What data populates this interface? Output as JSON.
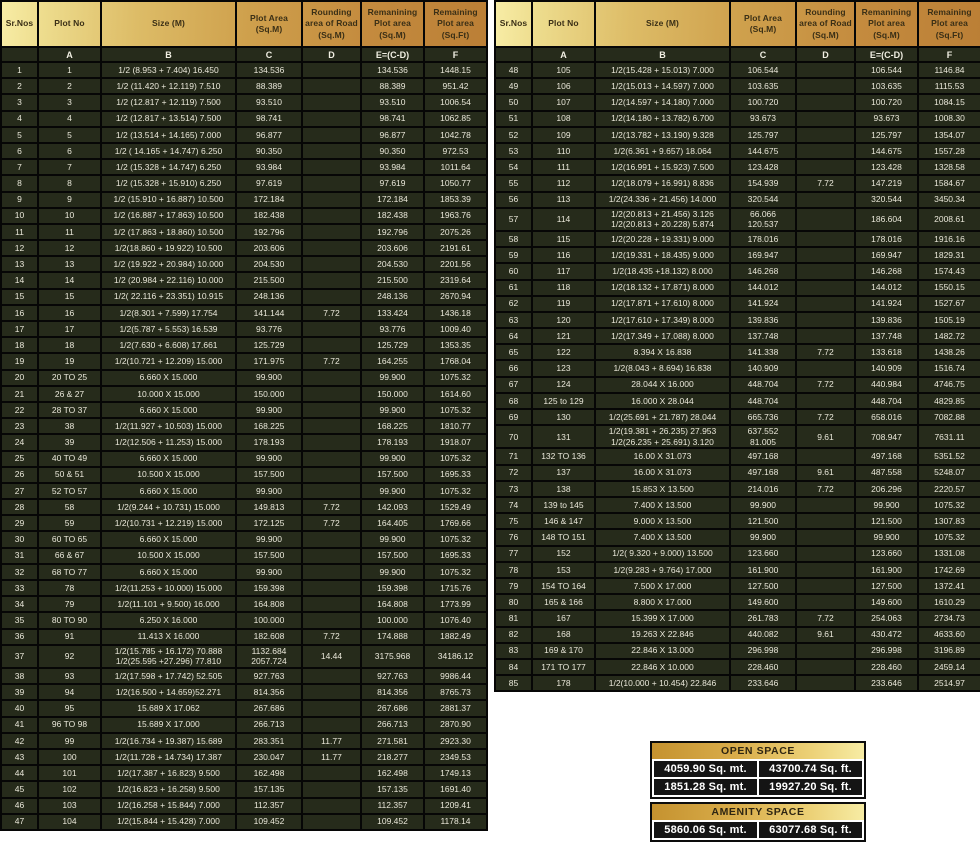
{
  "headers": [
    "Sr.Nos",
    "Plot No",
    "Size (M)",
    "Plot Area (Sq.M)",
    "Rounding area of Road (Sq.M)",
    "Remanining Plot area (Sq.M)",
    "Remaining Plot area (Sq.Ft)"
  ],
  "subheaders": [
    "",
    "A",
    "B",
    "C",
    "D",
    "E=(C-D)",
    "F"
  ],
  "left_table": {
    "rows": [
      [
        "1",
        "1",
        "1/2 (8.953 + 7.404) 16.450",
        "134.536",
        "",
        "134.536",
        "1448.15"
      ],
      [
        "2",
        "2",
        "1/2 (11.420 + 12.119) 7.510",
        "88.389",
        "",
        "88.389",
        "951.42"
      ],
      [
        "3",
        "3",
        "1/2 (12.817 + 12.119) 7.500",
        "93.510",
        "",
        "93.510",
        "1006.54"
      ],
      [
        "4",
        "4",
        "1/2 (12.817 + 13.514) 7.500",
        "98.741",
        "",
        "98.741",
        "1062.85"
      ],
      [
        "5",
        "5",
        "1/2 (13.514 + 14.165) 7.000",
        "96.877",
        "",
        "96.877",
        "1042.78"
      ],
      [
        "6",
        "6",
        "1/2 ( 14.165 + 14.747) 6.250",
        "90.350",
        "",
        "90.350",
        "972.53"
      ],
      [
        "7",
        "7",
        "1/2 (15.328 + 14.747) 6.250",
        "93.984",
        "",
        "93.984",
        "1011.64"
      ],
      [
        "8",
        "8",
        "1/2 (15.328 + 15.910) 6.250",
        "97.619",
        "",
        "97.619",
        "1050.77"
      ],
      [
        "9",
        "9",
        "1/2 (15.910 + 16.887) 10.500",
        "172.184",
        "",
        "172.184",
        "1853.39"
      ],
      [
        "10",
        "10",
        "1/2 (16.887 + 17.863) 10.500",
        "182.438",
        "",
        "182.438",
        "1963.76"
      ],
      [
        "11",
        "11",
        "1/2 (17.863 + 18.860) 10.500",
        "192.796",
        "",
        "192.796",
        "2075.26"
      ],
      [
        "12",
        "12",
        "1/2(18.860 + 19.922) 10.500",
        "203.606",
        "",
        "203.606",
        "2191.61"
      ],
      [
        "13",
        "13",
        "1/2 (19.922 + 20.984) 10.000",
        "204.530",
        "",
        "204.530",
        "2201.56"
      ],
      [
        "14",
        "14",
        "1/2 (20.984 + 22.116) 10.000",
        "215.500",
        "",
        "215.500",
        "2319.64"
      ],
      [
        "15",
        "15",
        "1/2( 22.116 + 23.351) 10.915",
        "248.136",
        "",
        "248.136",
        "2670.94"
      ],
      [
        "16",
        "16",
        "1/2(8.301 + 7.599) 17.754",
        "141.144",
        "7.72",
        "133.424",
        "1436.18"
      ],
      [
        "17",
        "17",
        "1/2(5.787 + 5.553) 16.539",
        "93.776",
        "",
        "93.776",
        "1009.40"
      ],
      [
        "18",
        "18",
        "1/2(7.630 + 6.608) 17.661",
        "125.729",
        "",
        "125.729",
        "1353.35"
      ],
      [
        "19",
        "19",
        "1/2(10.721 + 12.209) 15.000",
        "171.975",
        "7.72",
        "164.255",
        "1768.04"
      ],
      [
        "20",
        "20 TO 25",
        "6.660 X 15.000",
        "99.900",
        "",
        "99.900",
        "1075.32"
      ],
      [
        "21",
        "26 & 27",
        "10.000 X 15.000",
        "150.000",
        "",
        "150.000",
        "1614.60"
      ],
      [
        "22",
        "28 TO 37",
        "6.660 X 15.000",
        "99.900",
        "",
        "99.900",
        "1075.32"
      ],
      [
        "23",
        "38",
        "1/2(11.927 + 10.503) 15.000",
        "168.225",
        "",
        "168.225",
        "1810.77"
      ],
      [
        "24",
        "39",
        "1/2(12.506 + 11.253) 15.000",
        "178.193",
        "",
        "178.193",
        "1918.07"
      ],
      [
        "25",
        "40 TO 49",
        "6.660 X 15.000",
        "99.900",
        "",
        "99.900",
        "1075.32"
      ],
      [
        "26",
        "50 & 51",
        "10.500 X 15.000",
        "157.500",
        "",
        "157.500",
        "1695.33"
      ],
      [
        "27",
        "52 TO 57",
        "6.660 X 15.000",
        "99.900",
        "",
        "99.900",
        "1075.32"
      ],
      [
        "28",
        "58",
        "1/2(9.244 + 10.731) 15.000",
        "149.813",
        "7.72",
        "142.093",
        "1529.49"
      ],
      [
        "29",
        "59",
        "1/2(10.731 + 12.219) 15.000",
        "172.125",
        "7.72",
        "164.405",
        "1769.66"
      ],
      [
        "30",
        "60 TO 65",
        "6.660 X 15.000",
        "99.900",
        "",
        "99.900",
        "1075.32"
      ],
      [
        "31",
        "66 & 67",
        "10.500 X 15.000",
        "157.500",
        "",
        "157.500",
        "1695.33"
      ],
      [
        "32",
        "68 TO 77",
        "6.660 X 15.000",
        "99.900",
        "",
        "99.900",
        "1075.32"
      ],
      [
        "33",
        "78",
        "1/2(11.253 + 10.000) 15.000",
        "159.398",
        "",
        "159.398",
        "1715.76"
      ],
      [
        "34",
        "79",
        "1/2(11.101 + 9.500) 16.000",
        "164.808",
        "",
        "164.808",
        "1773.99"
      ],
      [
        "35",
        "80 TO 90",
        "6.250 X 16.000",
        "100.000",
        "",
        "100.000",
        "1076.40"
      ],
      [
        "36",
        "91",
        "11.413 X 16.000",
        "182.608",
        "7.72",
        "174.888",
        "1882.49"
      ],
      [
        "37",
        "92",
        "1/2(15.785 + 16.172) 70.888\n1/2(25.595 +27.296) 77.810",
        "1132.684\n2057.724",
        "14.44",
        "3175.968",
        "34186.12"
      ],
      [
        "38",
        "93",
        "1/2(17.598 + 17.742) 52.505",
        "927.763",
        "",
        "927.763",
        "9986.44"
      ],
      [
        "39",
        "94",
        "1/2(16.500 + 14.659)52.271",
        "814.356",
        "",
        "814.356",
        "8765.73"
      ],
      [
        "40",
        "95",
        "15.689 X 17.062",
        "267.686",
        "",
        "267.686",
        "2881.37"
      ],
      [
        "41",
        "96 TO 98",
        "15.689 X 17.000",
        "266.713",
        "",
        "266.713",
        "2870.90"
      ],
      [
        "42",
        "99",
        "1/2(16.734 + 19.387) 15.689",
        "283.351",
        "11.77",
        "271.581",
        "2923.30"
      ],
      [
        "43",
        "100",
        "1/2(11.728 + 14.734) 17.387",
        "230.047",
        "11.77",
        "218.277",
        "2349.53"
      ],
      [
        "44",
        "101",
        "1/2(17.387 + 16.823) 9.500",
        "162.498",
        "",
        "162.498",
        "1749.13"
      ],
      [
        "45",
        "102",
        "1/2(16.823 + 16.258) 9.500",
        "157.135",
        "",
        "157.135",
        "1691.40"
      ],
      [
        "46",
        "103",
        "1/2(16.258 + 15.844) 7.000",
        "112.357",
        "",
        "112.357",
        "1209.41"
      ],
      [
        "47",
        "104",
        "1/2(15.844 + 15.428) 7.000",
        "109.452",
        "",
        "109.452",
        "1178.14"
      ]
    ]
  },
  "right_table": {
    "rows": [
      [
        "48",
        "105",
        "1/2(15.428 + 15.013) 7.000",
        "106.544",
        "",
        "106.544",
        "1146.84"
      ],
      [
        "49",
        "106",
        "1/2(15.013 + 14.597) 7.000",
        "103.635",
        "",
        "103.635",
        "1115.53"
      ],
      [
        "50",
        "107",
        "1/2(14.597 + 14.180) 7.000",
        "100.720",
        "",
        "100.720",
        "1084.15"
      ],
      [
        "51",
        "108",
        "1/2(14.180 + 13.782) 6.700",
        "93.673",
        "",
        "93.673",
        "1008.30"
      ],
      [
        "52",
        "109",
        "1/2(13.782 + 13.190) 9.328",
        "125.797",
        "",
        "125.797",
        "1354.07"
      ],
      [
        "53",
        "110",
        "1/2(6.361 + 9.657) 18.064",
        "144.675",
        "",
        "144.675",
        "1557.28"
      ],
      [
        "54",
        "111",
        "1/2(16.991 + 15.923) 7.500",
        "123.428",
        "",
        "123.428",
        "1328.58"
      ],
      [
        "55",
        "112",
        "1/2(18.079 + 16.991) 8.836",
        "154.939",
        "7.72",
        "147.219",
        "1584.67"
      ],
      [
        "56",
        "113",
        "1/2(24.336 + 21.456) 14.000",
        "320.544",
        "",
        "320.544",
        "3450.34"
      ],
      [
        "57",
        "114",
        "1/2(20.813 + 21.456) 3.126\n1/2(20.813 + 20.228) 5.874",
        "66.066\n120.537",
        "",
        "186.604",
        "2008.61"
      ],
      [
        "58",
        "115",
        "1/2(20.228 + 19.331) 9.000",
        "178.016",
        "",
        "178.016",
        "1916.16"
      ],
      [
        "59",
        "116",
        "1/2(19.331 + 18.435) 9.000",
        "169.947",
        "",
        "169.947",
        "1829.31"
      ],
      [
        "60",
        "117",
        "1/2(18.435 +18.132) 8.000",
        "146.268",
        "",
        "146.268",
        "1574.43"
      ],
      [
        "61",
        "118",
        "1/2(18.132 + 17.871) 8.000",
        "144.012",
        "",
        "144.012",
        "1550.15"
      ],
      [
        "62",
        "119",
        "1/2(17.871 + 17.610) 8.000",
        "141.924",
        "",
        "141.924",
        "1527.67"
      ],
      [
        "63",
        "120",
        "1/2(17.610 + 17.349) 8.000",
        "139.836",
        "",
        "139.836",
        "1505.19"
      ],
      [
        "64",
        "121",
        "1/2(17.349 + 17.088) 8.000",
        "137.748",
        "",
        "137.748",
        "1482.72"
      ],
      [
        "65",
        "122",
        "8.394 X 16.838",
        "141.338",
        "7.72",
        "133.618",
        "1438.26"
      ],
      [
        "66",
        "123",
        "1/2(8.043 + 8.694) 16.838",
        "140.909",
        "",
        "140.909",
        "1516.74"
      ],
      [
        "67",
        "124",
        "28.044 X 16.000",
        "448.704",
        "7.72",
        "440.984",
        "4746.75"
      ],
      [
        "68",
        "125 to 129",
        "16.000 X 28.044",
        "448.704",
        "",
        "448.704",
        "4829.85"
      ],
      [
        "69",
        "130",
        "1/2(25.691 + 21.787) 28.044",
        "665.736",
        "7.72",
        "658.016",
        "7082.88"
      ],
      [
        "70",
        "131",
        "1/2(19.381 + 26.235) 27.953\n1/2(26.235 + 25.691) 3.120",
        "637.552\n81.005",
        "9.61",
        "708.947",
        "7631.11"
      ],
      [
        "71",
        "132 TO 136",
        "16.00 X 31.073",
        "497.168",
        "",
        "497.168",
        "5351.52"
      ],
      [
        "72",
        "137",
        "16.00 X 31.073",
        "497.168",
        "9.61",
        "487.558",
        "5248.07"
      ],
      [
        "73",
        "138",
        "15.853 X 13.500",
        "214.016",
        "7.72",
        "206.296",
        "2220.57"
      ],
      [
        "74",
        "139 to 145",
        "7.400 X 13.500",
        "99.900",
        "",
        "99.900",
        "1075.32"
      ],
      [
        "75",
        "146 & 147",
        "9.000 X 13.500",
        "121.500",
        "",
        "121.500",
        "1307.83"
      ],
      [
        "76",
        "148 TO 151",
        "7.400 X 13.500",
        "99.900",
        "",
        "99.900",
        "1075.32"
      ],
      [
        "77",
        "152",
        "1/2( 9.320 + 9.000) 13.500",
        "123.660",
        "",
        "123.660",
        "1331.08"
      ],
      [
        "78",
        "153",
        "1/2(9.283 + 9.764) 17.000",
        "161.900",
        "",
        "161.900",
        "1742.69"
      ],
      [
        "79",
        "154 TO 164",
        "7.500 X 17.000",
        "127.500",
        "",
        "127.500",
        "1372.41"
      ],
      [
        "80",
        "165 & 166",
        "8.800 X 17.000",
        "149.600",
        "",
        "149.600",
        "1610.29"
      ],
      [
        "81",
        "167",
        "15.399 X 17.000",
        "261.783",
        "7.72",
        "254.063",
        "2734.73"
      ],
      [
        "82",
        "168",
        "19.263 X 22.846",
        "440.082",
        "9.61",
        "430.472",
        "4633.60"
      ],
      [
        "83",
        "169 & 170",
        "22.846 X 13.000",
        "296.998",
        "",
        "296.998",
        "3196.89"
      ],
      [
        "84",
        "171 TO 177",
        "22.846 X 10.000",
        "228.460",
        "",
        "228.460",
        "2459.14"
      ],
      [
        "85",
        "178",
        "1/2(10.000 + 10.454) 22.846",
        "233.646",
        "",
        "233.646",
        "2514.97"
      ]
    ]
  },
  "open_space": {
    "title": "OPEN SPACE",
    "rows": [
      [
        "4059.90 Sq. mt.",
        "43700.74 Sq. ft."
      ],
      [
        "1851.28 Sq. mt.",
        "19927.20 Sq. ft."
      ]
    ]
  },
  "amenity_space": {
    "title": "AMENITY SPACE",
    "rows": [
      [
        "5860.06 Sq. mt.",
        "63077.68 Sq. ft."
      ]
    ]
  },
  "colors": {
    "header_gradient_start": "#f8eda6",
    "header_gradient_end": "#bb7f36",
    "row_background": "#262b1b",
    "row_text": "#eae8da",
    "grid_border": "#060606",
    "box_cell_background": "#141414",
    "box_title_text": "#2e2512"
  }
}
